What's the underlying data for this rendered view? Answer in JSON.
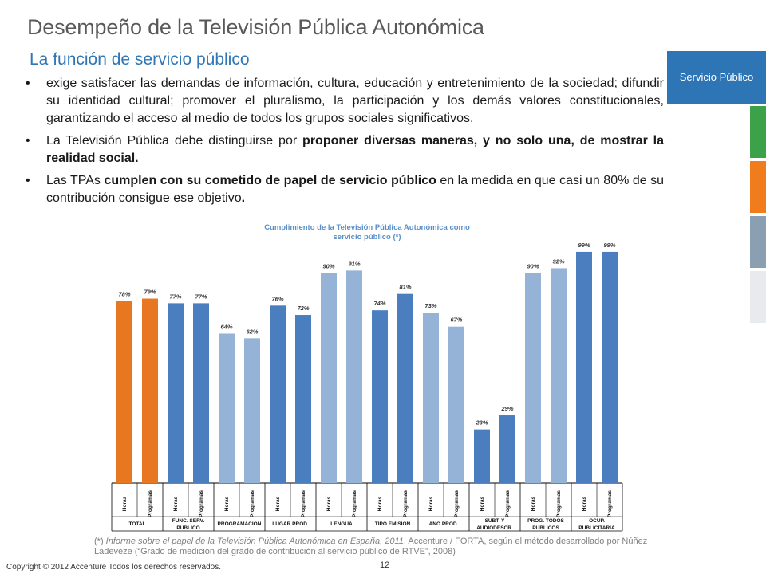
{
  "slide": {
    "title": "Desempeño de la Televisión Pública Autonómica",
    "subtitle": "La función de servicio público"
  },
  "nav": {
    "active_section": "Servicio Público",
    "tab_colors": [
      "#3ba24a",
      "#f07c1e",
      "#8a9fb2",
      "#e8ebee"
    ]
  },
  "bullets": [
    {
      "text": "exige satisfacer las demandas de información, cultura, educación y entretenimiento de la sociedad; difundir su identidad cultural; promover el pluralismo, la participación y los demás valores constitucionales, garantizando el acceso al medio de todos los grupos sociales significativos."
    },
    {
      "pre": "La Televisión Pública debe distinguirse por ",
      "bold": "proponer diversas maneras, y no solo una, de mostrar la realidad social.",
      "post": ""
    },
    {
      "pre": "Las TPAs ",
      "bold": "cumplen con su cometido de papel de servicio público",
      "post": " en la medida en que casi un 80% de su contribución consigue ese objetivo",
      "end": "."
    }
  ],
  "chart_data": {
    "type": "bar",
    "title": "Cumplimiento de la Televisión Pública Autonómica como servicio público (*)",
    "ylim": [
      0,
      100
    ],
    "grid": false,
    "legend": "none",
    "sub_labels": [
      "Horas",
      "Programas"
    ],
    "groups": [
      {
        "name": "TOTAL",
        "values": [
          78,
          79
        ],
        "color": "#e87722"
      },
      {
        "name": "FUNC. SERV. PÚBLICO",
        "values": [
          77,
          77
        ],
        "color": "#4a7ebf"
      },
      {
        "name": "PROGRAMACIÓN",
        "values": [
          64,
          62
        ],
        "color": "#95b3d7"
      },
      {
        "name": "LUGAR PROD.",
        "values": [
          76,
          72
        ],
        "color": "#4a7ebf"
      },
      {
        "name": "LENGUA",
        "values": [
          90,
          91
        ],
        "color": "#95b3d7"
      },
      {
        "name": "TIPO EMISIÓN",
        "values": [
          74,
          81
        ],
        "color": "#4a7ebf"
      },
      {
        "name": "AÑO PROD.",
        "values": [
          73,
          67
        ],
        "color": "#95b3d7"
      },
      {
        "name": "SUBT. Y AUDIODESCR.",
        "values": [
          23,
          29
        ],
        "color": "#4a7ebf"
      },
      {
        "name": "PROG. TODOS PÚBLICOS",
        "values": [
          90,
          92
        ],
        "color": "#95b3d7"
      },
      {
        "name": "OCUP. PUBLICITARIA",
        "values": [
          99,
          99
        ],
        "color": "#4a7ebf"
      }
    ]
  },
  "footnote": {
    "prefix": "(*) ",
    "italic": "Informe sobre el papel de la Televisión Pública Autonómica en España, 2011",
    "rest": ", Accenture / FORTA, según el método desarrollado por Núñez Ladevéze (“Grado de medición del grado de contribución al servicio público de RTVE”, 2008)"
  },
  "footer": {
    "copyright": "Copyright © 2012 Accenture Todos los derechos reservados.",
    "page_number": "12"
  }
}
